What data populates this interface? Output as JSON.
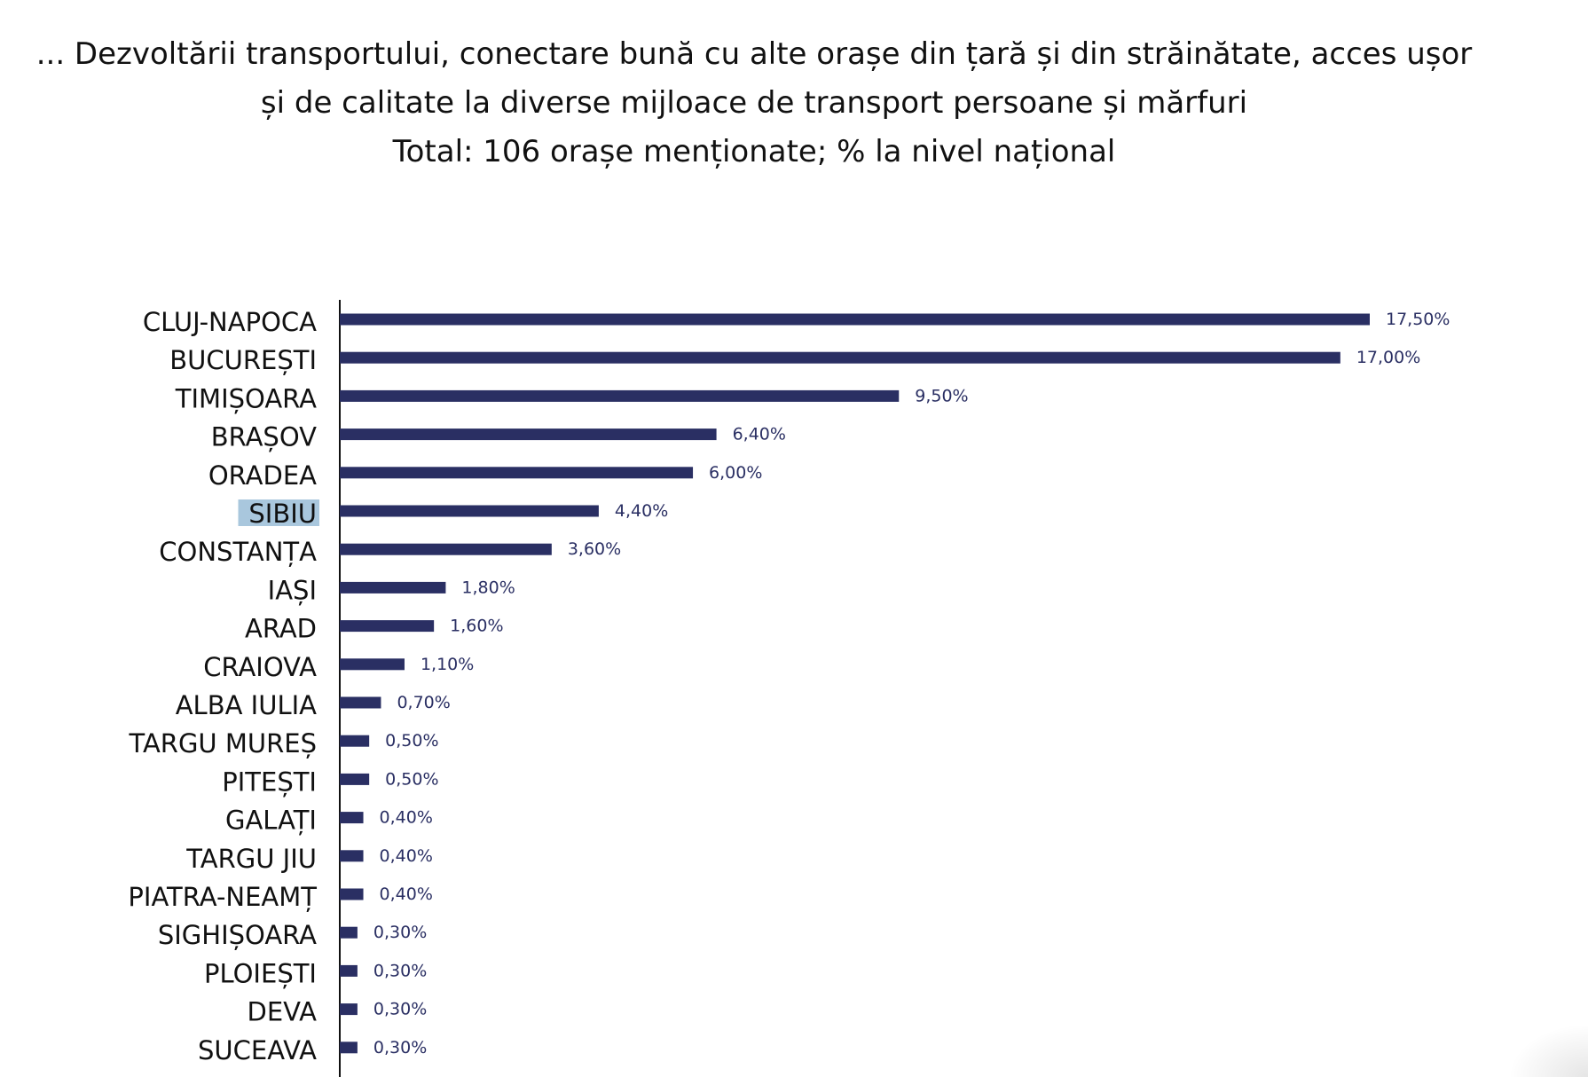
{
  "title_lines": [
    "... Dezvoltării transportului, conectare bună cu alte orașe din țară și din străinătate, acces ușor",
    "și de calitate la diverse mijloace de transport persoane și mărfuri",
    "Total: 106 orașe menționate; % la nivel național"
  ],
  "colors": {
    "bar": "#2a2f63",
    "highlight": "#a9c7dd",
    "axis": "#111111"
  },
  "chart_data": {
    "type": "bar",
    "orientation": "horizontal",
    "title": "... Dezvoltării transportului, conectare bună cu alte orașe din țară și din străinătate, acces ușor și de calitate la diverse mijloace de transport persoane și mărfuri",
    "subtitle": "Total: 106 orașe menționate; % la nivel național",
    "categories": [
      "CLUJ-NAPOCA",
      "BUCUREȘTI",
      "TIMIȘOARA",
      "BRAȘOV",
      "ORADEA",
      "SIBIU",
      "CONSTANȚA",
      "IAȘI",
      "ARAD",
      "CRAIOVA",
      "ALBA IULIA",
      "TARGU MUREȘ",
      "PITEȘTI",
      "GALAȚI",
      "TARGU JIU",
      "PIATRA-NEAMȚ",
      "SIGHIȘOARA",
      "PLOIEȘTI",
      "DEVA",
      "SUCEAVA"
    ],
    "values": [
      17.5,
      17.0,
      9.5,
      6.4,
      6.0,
      4.4,
      3.6,
      1.8,
      1.6,
      1.1,
      0.7,
      0.5,
      0.5,
      0.4,
      0.4,
      0.4,
      0.3,
      0.3,
      0.3,
      0.3
    ],
    "value_labels": [
      "17,50%",
      "17,00%",
      "9,50%",
      "6,40%",
      "6,00%",
      "4,40%",
      "3,60%",
      "1,80%",
      "1,60%",
      "1,10%",
      "0,70%",
      "0,50%",
      "0,50%",
      "0,40%",
      "0,40%",
      "0,40%",
      "0,30%",
      "0,30%",
      "0,30%",
      "0,30%"
    ],
    "highlighted_category": "SIBIU",
    "xlabel": "",
    "ylabel": "",
    "xlim": [
      0,
      17.5
    ],
    "grid": false,
    "legend": "none"
  }
}
